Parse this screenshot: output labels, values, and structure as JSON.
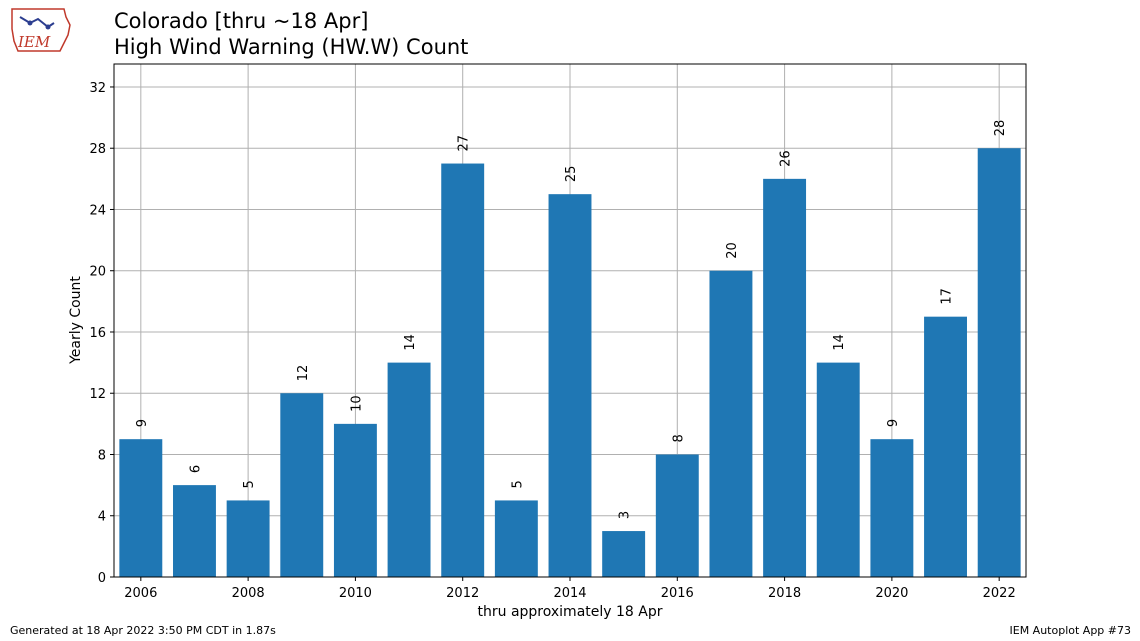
{
  "header": {
    "title_line1": "Colorado [thru ~18 Apr]",
    "title_line2": "High Wind Warning (HW.W) Count",
    "logo_text": "IEM"
  },
  "footer": {
    "generated": "Generated at 18 Apr 2022 3:50 PM CDT in 1.87s",
    "app": "IEM Autoplot App #73"
  },
  "chart_data": {
    "type": "bar",
    "x": [
      2006,
      2007,
      2008,
      2009,
      2010,
      2011,
      2012,
      2013,
      2014,
      2015,
      2016,
      2017,
      2018,
      2019,
      2020,
      2021,
      2022
    ],
    "values": [
      9,
      6,
      5,
      12,
      10,
      14,
      27,
      5,
      25,
      3,
      8,
      20,
      26,
      14,
      9,
      17,
      28
    ],
    "xticks": [
      "2006",
      "2008",
      "2010",
      "2012",
      "2014",
      "2016",
      "2018",
      "2020",
      "2022"
    ],
    "yticks": [
      "0",
      "4",
      "8",
      "12",
      "16",
      "20",
      "24",
      "28",
      "32"
    ],
    "xlabel": "thru approximately 18 Apr",
    "ylabel": "Yearly Count",
    "xlim": [
      2005.5,
      2022.5
    ],
    "ylim": [
      0,
      33.5
    ],
    "grid": true,
    "bar_color": "#1f77b4"
  }
}
